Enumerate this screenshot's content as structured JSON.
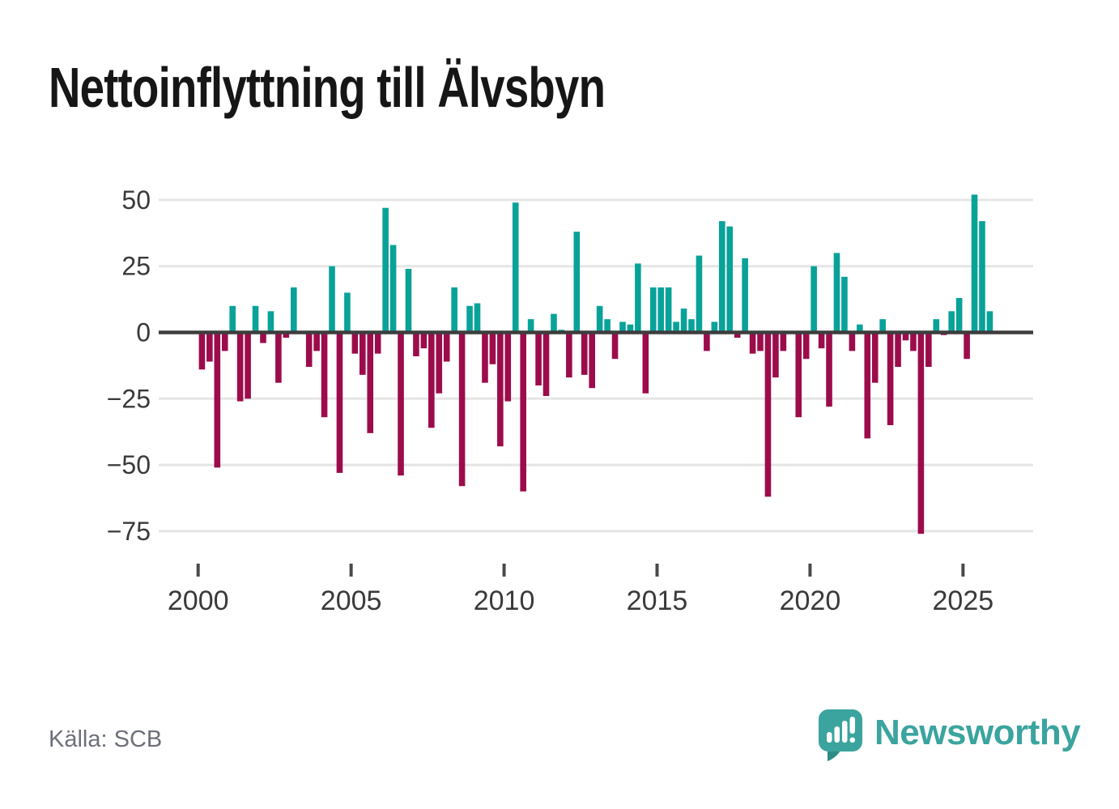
{
  "title": "Nettoinflyttning till Älvsbyn",
  "source": "Källa: SCB",
  "brand": {
    "name": "Newsworthy"
  },
  "colors": {
    "positive": "#08a299",
    "negative": "#9c0c4b",
    "zero_line": "#3d3d3d",
    "gridline": "#e5e5e5",
    "axis_text": "#3a3a3a",
    "title_text": "#161616",
    "source_text": "#6d7078",
    "brand_teal": "#3ba49e",
    "brand_teal_dark": "#2d8c86",
    "background": "#ffffff"
  },
  "chart_data": {
    "type": "bar",
    "title": "Nettoinflyttning till Älvsbyn",
    "xlabel": "",
    "ylabel": "",
    "frequency": "quarterly",
    "x_range": [
      "2000Q1",
      "2025Q4"
    ],
    "ylim": [
      -80,
      57
    ],
    "grid": true,
    "legend": false,
    "positive_color_meaning": "net in-migration",
    "negative_color_meaning": "net out-migration",
    "y_ticks": [
      {
        "v": 50,
        "label": "50"
      },
      {
        "v": 25,
        "label": "25"
      },
      {
        "v": 0,
        "label": "0"
      },
      {
        "v": -25,
        "label": "−25"
      },
      {
        "v": -50,
        "label": "−50"
      },
      {
        "v": -75,
        "label": "−75"
      }
    ],
    "x_ticks": [
      {
        "year": 2000,
        "label": "2000"
      },
      {
        "year": 2005,
        "label": "2005"
      },
      {
        "year": 2010,
        "label": "2010"
      },
      {
        "year": 2015,
        "label": "2015"
      },
      {
        "year": 2020,
        "label": "2020"
      },
      {
        "year": 2025,
        "label": "2025"
      }
    ],
    "years": [
      {
        "year": 2000,
        "values": [
          -14,
          -11,
          -51,
          -7
        ]
      },
      {
        "year": 2001,
        "values": [
          10,
          -26,
          -25,
          10
        ]
      },
      {
        "year": 2002,
        "values": [
          -4,
          8,
          -19,
          -2
        ]
      },
      {
        "year": 2003,
        "values": [
          17,
          0,
          -13,
          -7
        ]
      },
      {
        "year": 2004,
        "values": [
          -32,
          25,
          -53,
          15
        ]
      },
      {
        "year": 2005,
        "values": [
          -8,
          -16,
          -38,
          -8
        ]
      },
      {
        "year": 2006,
        "values": [
          47,
          33,
          -54,
          24
        ]
      },
      {
        "year": 2007,
        "values": [
          -9,
          -6,
          -36,
          -23
        ]
      },
      {
        "year": 2008,
        "values": [
          -11,
          17,
          -58,
          10
        ]
      },
      {
        "year": 2009,
        "values": [
          11,
          -19,
          -12,
          -43
        ]
      },
      {
        "year": 2010,
        "values": [
          -26,
          49,
          -60,
          5
        ]
      },
      {
        "year": 2011,
        "values": [
          -20,
          -24,
          7,
          1
        ]
      },
      {
        "year": 2012,
        "values": [
          -17,
          38,
          -16,
          -21
        ]
      },
      {
        "year": 2013,
        "values": [
          10,
          5,
          -10,
          4
        ]
      },
      {
        "year": 2014,
        "values": [
          3,
          26,
          -23,
          17
        ]
      },
      {
        "year": 2015,
        "values": [
          17,
          17,
          4,
          9
        ]
      },
      {
        "year": 2016,
        "values": [
          5,
          29,
          -7,
          4
        ]
      },
      {
        "year": 2017,
        "values": [
          42,
          40,
          -2,
          28
        ]
      },
      {
        "year": 2018,
        "values": [
          -8,
          -7,
          -62,
          -17
        ]
      },
      {
        "year": 2019,
        "values": [
          -7,
          0,
          -32,
          -10
        ]
      },
      {
        "year": 2020,
        "values": [
          25,
          -6,
          -28,
          30
        ]
      },
      {
        "year": 2021,
        "values": [
          21,
          -7,
          3,
          -40
        ]
      },
      {
        "year": 2022,
        "values": [
          -19,
          5,
          -35,
          -13
        ]
      },
      {
        "year": 2023,
        "values": [
          -3,
          -7,
          -76,
          -13
        ]
      },
      {
        "year": 2024,
        "values": [
          5,
          -1,
          8,
          13
        ]
      },
      {
        "year": 2025,
        "values": [
          -10,
          52,
          42,
          8
        ]
      }
    ]
  }
}
